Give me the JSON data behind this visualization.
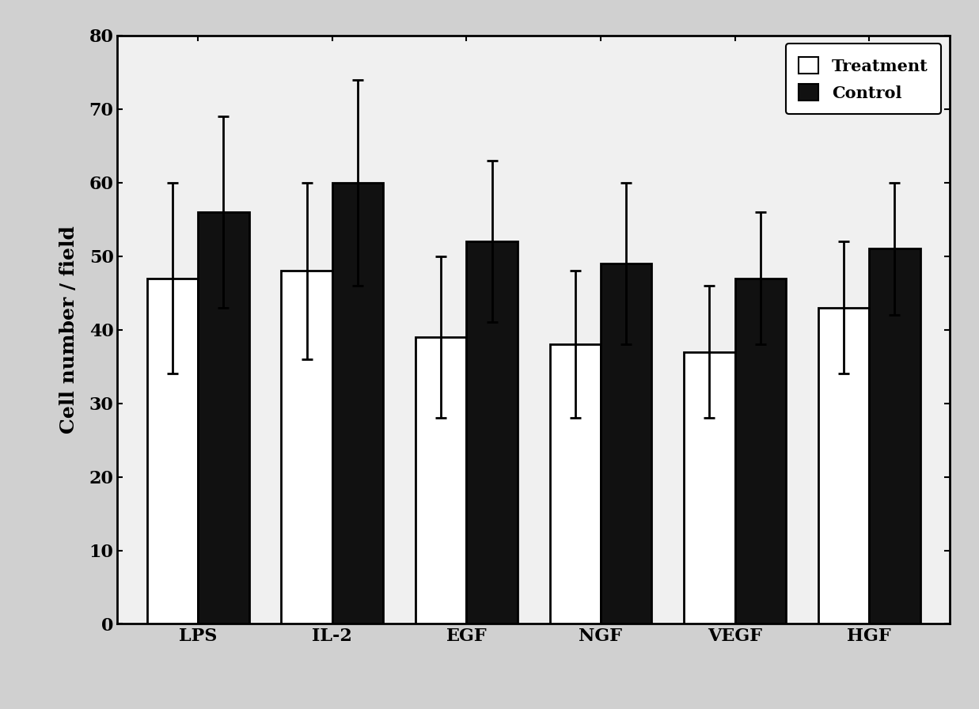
{
  "categories": [
    "LPS",
    "IL-2",
    "EGF",
    "NGF",
    "VEGF",
    "HGF"
  ],
  "treatment_values": [
    47,
    48,
    39,
    38,
    37,
    43
  ],
  "control_values": [
    56,
    60,
    52,
    49,
    47,
    51
  ],
  "treatment_errors": [
    13,
    12,
    11,
    10,
    9,
    9
  ],
  "control_errors": [
    13,
    14,
    11,
    11,
    9,
    9
  ],
  "ylabel": "Cell number / field",
  "ylim": [
    0,
    80
  ],
  "yticks": [
    0,
    10,
    20,
    30,
    40,
    50,
    60,
    70,
    80
  ],
  "legend_labels": [
    "Treatment",
    "Control"
  ],
  "treatment_color": "white",
  "control_color": "#111111",
  "bar_edge_color": "black",
  "bar_width": 0.38,
  "figsize": [
    12.37,
    8.96
  ],
  "dpi": 100,
  "figure_background_color": "#d0d0d0",
  "axes_background_color": "#f0f0f0",
  "tick_fontsize": 16,
  "label_fontsize": 18,
  "legend_fontsize": 15,
  "capsize": 5,
  "elinewidth": 2.0,
  "bar_linewidth": 2.0,
  "spine_linewidth": 2.0
}
